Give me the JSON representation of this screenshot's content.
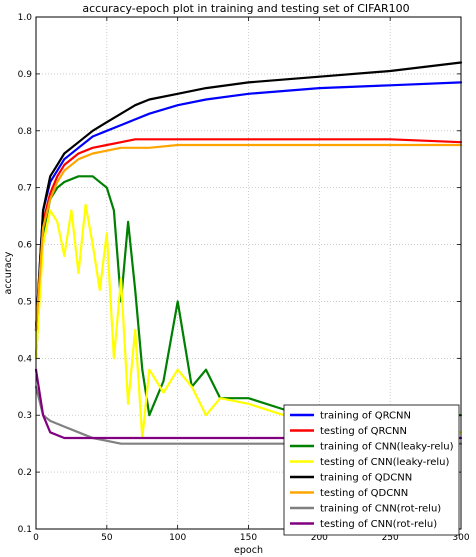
{
  "chart_data": {
    "type": "line",
    "title": "accuracy-epoch plot in training and testing set of CIFAR100",
    "xlabel": "epoch",
    "ylabel": "accuracy",
    "xlim": [
      0,
      300
    ],
    "ylim": [
      0.1,
      1.0
    ],
    "xticks": [
      0,
      50,
      100,
      150,
      200,
      250,
      300
    ],
    "yticks": [
      0.1,
      0.2,
      0.3,
      0.4,
      0.5,
      0.6,
      0.7,
      0.8,
      0.9,
      1.0
    ],
    "grid": true,
    "legend_position": "bottom-right",
    "series": [
      {
        "name": "training of QRCNN",
        "color": "#0000ff",
        "x": [
          0,
          5,
          10,
          15,
          20,
          30,
          40,
          50,
          60,
          70,
          80,
          100,
          120,
          150,
          200,
          250,
          300
        ],
        "y": [
          0.45,
          0.66,
          0.71,
          0.73,
          0.75,
          0.77,
          0.79,
          0.8,
          0.81,
          0.82,
          0.83,
          0.845,
          0.855,
          0.865,
          0.875,
          0.88,
          0.885
        ]
      },
      {
        "name": "testing of QRCNN",
        "color": "#ff0000",
        "x": [
          0,
          5,
          10,
          15,
          20,
          30,
          40,
          50,
          60,
          70,
          80,
          100,
          120,
          150,
          200,
          250,
          300
        ],
        "y": [
          0.45,
          0.64,
          0.69,
          0.72,
          0.74,
          0.76,
          0.77,
          0.775,
          0.78,
          0.785,
          0.785,
          0.785,
          0.785,
          0.785,
          0.785,
          0.785,
          0.78
        ]
      },
      {
        "name": "training of CNN(leaky-relu)",
        "color": "#008000",
        "x": [
          0,
          5,
          10,
          15,
          20,
          30,
          40,
          50,
          55,
          60,
          65,
          70,
          75,
          80,
          90,
          100,
          110,
          120,
          130,
          150,
          175,
          200,
          250,
          300
        ],
        "y": [
          0.4,
          0.62,
          0.68,
          0.7,
          0.71,
          0.72,
          0.72,
          0.7,
          0.66,
          0.5,
          0.64,
          0.52,
          0.38,
          0.3,
          0.36,
          0.5,
          0.35,
          0.38,
          0.33,
          0.33,
          0.31,
          0.3,
          0.3,
          0.3
        ]
      },
      {
        "name": "testing of CNN(leaky-relu)",
        "color": "#ffff00",
        "x": [
          0,
          5,
          10,
          15,
          20,
          25,
          30,
          35,
          40,
          45,
          50,
          55,
          60,
          65,
          70,
          75,
          80,
          90,
          100,
          110,
          120,
          130,
          150,
          175,
          200,
          250,
          300
        ],
        "y": [
          0.4,
          0.6,
          0.66,
          0.64,
          0.58,
          0.66,
          0.55,
          0.67,
          0.6,
          0.52,
          0.62,
          0.4,
          0.54,
          0.32,
          0.45,
          0.26,
          0.38,
          0.34,
          0.38,
          0.35,
          0.3,
          0.33,
          0.32,
          0.3,
          0.29,
          0.28,
          0.27
        ]
      },
      {
        "name": "training of QDCNN",
        "color": "#000000",
        "x": [
          0,
          5,
          10,
          15,
          20,
          30,
          40,
          50,
          60,
          70,
          80,
          100,
          120,
          150,
          200,
          250,
          300
        ],
        "y": [
          0.45,
          0.66,
          0.72,
          0.74,
          0.76,
          0.78,
          0.8,
          0.815,
          0.83,
          0.845,
          0.855,
          0.865,
          0.875,
          0.885,
          0.895,
          0.905,
          0.92
        ]
      },
      {
        "name": "testing of QDCNN",
        "color": "#ffa500",
        "x": [
          0,
          5,
          10,
          15,
          20,
          30,
          40,
          50,
          60,
          70,
          80,
          100,
          120,
          150,
          200,
          250,
          300
        ],
        "y": [
          0.45,
          0.63,
          0.68,
          0.71,
          0.73,
          0.75,
          0.76,
          0.765,
          0.77,
          0.77,
          0.77,
          0.775,
          0.775,
          0.775,
          0.775,
          0.775,
          0.775
        ]
      },
      {
        "name": "training of CNN(rot-relu)",
        "color": "#808080",
        "x": [
          0,
          5,
          10,
          20,
          30,
          40,
          50,
          60,
          80,
          100,
          150,
          200,
          250,
          300
        ],
        "y": [
          0.35,
          0.3,
          0.29,
          0.28,
          0.27,
          0.26,
          0.255,
          0.25,
          0.25,
          0.25,
          0.25,
          0.25,
          0.25,
          0.25
        ]
      },
      {
        "name": "testing of CNN(rot-relu)",
        "color": "#800080",
        "x": [
          0,
          5,
          10,
          20,
          30,
          40,
          50,
          60,
          80,
          100,
          150,
          200,
          250,
          300
        ],
        "y": [
          0.38,
          0.3,
          0.27,
          0.26,
          0.26,
          0.26,
          0.26,
          0.26,
          0.26,
          0.26,
          0.26,
          0.26,
          0.26,
          0.26
        ]
      }
    ]
  }
}
